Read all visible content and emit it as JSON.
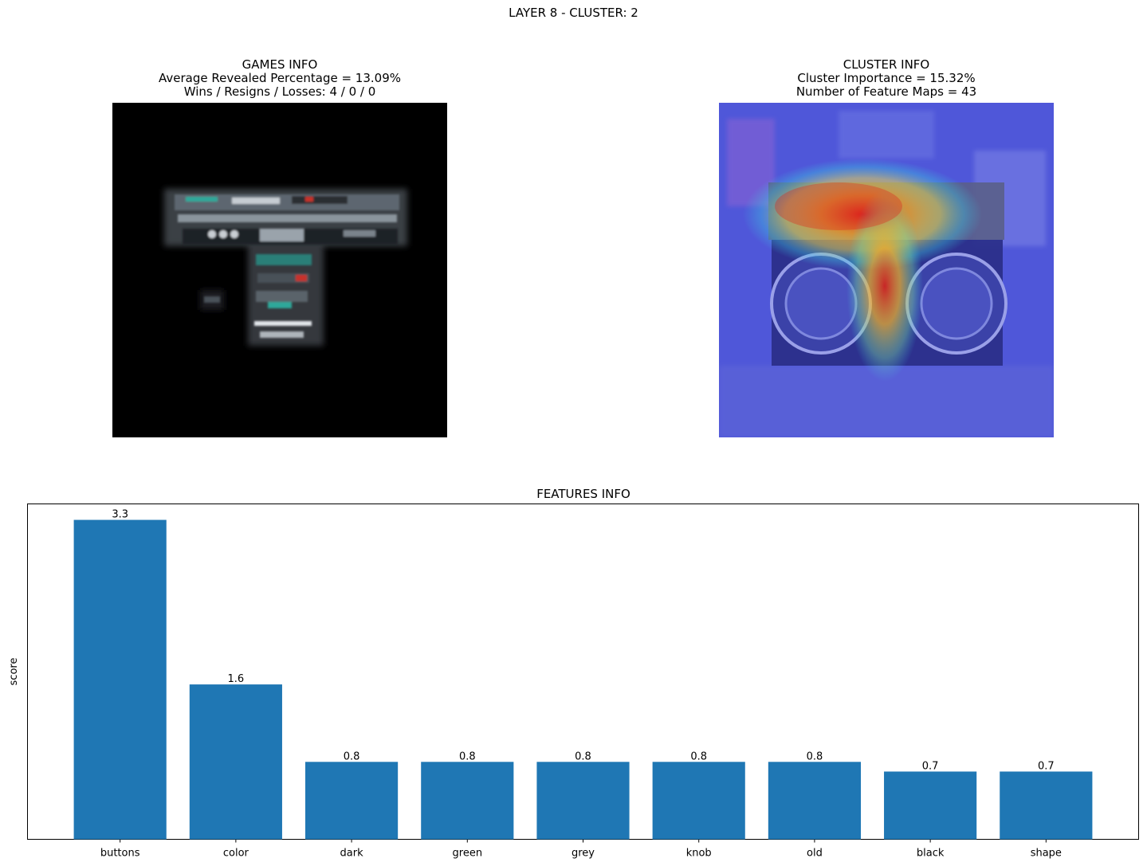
{
  "suptitle": "LAYER 8 - CLUSTER: 2",
  "games_panel": {
    "title_lines": [
      "GAMES INFO",
      "Average Revealed Percentage = 13.09%",
      "Wins / Resigns / Losses: 4 / 0 / 0"
    ]
  },
  "cluster_panel": {
    "title_lines": [
      "CLUSTER INFO",
      "Cluster Importance = 15.32%",
      "Number of Feature Maps = 43"
    ]
  },
  "chart_data": {
    "type": "bar",
    "title": "FEATURES INFO",
    "xlabel": "",
    "ylabel": "score",
    "categories": [
      "buttons",
      "color",
      "dark",
      "green",
      "grey",
      "knob",
      "old",
      "black",
      "shape"
    ],
    "values": [
      3.3,
      1.6,
      0.8,
      0.8,
      0.8,
      0.8,
      0.8,
      0.7,
      0.7
    ],
    "data_labels": [
      "3.3",
      "1.6",
      "0.8",
      "0.8",
      "0.8",
      "0.8",
      "0.8",
      "0.7",
      "0.7"
    ],
    "ylim": [
      0,
      3.465
    ],
    "yticks_shown": false,
    "grid": false,
    "bar_color": "#1f77b4"
  }
}
